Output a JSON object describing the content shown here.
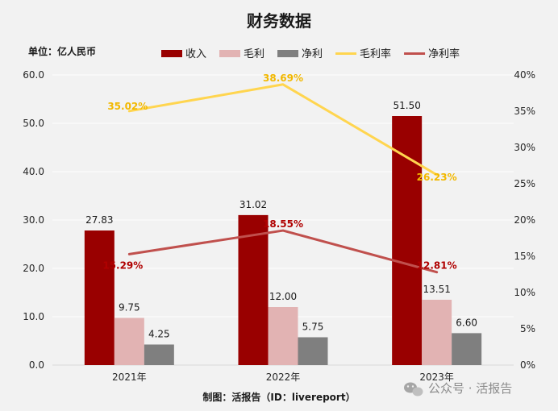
{
  "chart_data": {
    "type": "bar",
    "title": "财务数据",
    "unit_label": "单位：亿人民币",
    "categories": [
      "2021年",
      "2022年",
      "2023年"
    ],
    "series": [
      {
        "name": "收入",
        "type": "bar",
        "axis": "left",
        "color": "#990000",
        "values": [
          27.83,
          31.02,
          51.5
        ],
        "labels": [
          "27.83",
          "31.02",
          "51.50"
        ]
      },
      {
        "name": "毛利",
        "type": "bar",
        "axis": "left",
        "color": "#e2b3b3",
        "values": [
          9.75,
          12.0,
          13.51
        ],
        "labels": [
          "9.75",
          "12.00",
          "13.51"
        ]
      },
      {
        "name": "净利",
        "type": "bar",
        "axis": "left",
        "color": "#7f7f7f",
        "values": [
          4.25,
          5.75,
          6.6
        ],
        "labels": [
          "4.25",
          "5.75",
          "6.60"
        ]
      },
      {
        "name": "毛利率",
        "type": "line",
        "axis": "right",
        "color": "#ffd54f",
        "label_color": "#f2b800",
        "values": [
          35.02,
          38.69,
          26.23
        ],
        "labels": [
          "35.02%",
          "38.69%",
          "26.23%"
        ]
      },
      {
        "name": "净利率",
        "type": "line",
        "axis": "right",
        "color": "#c0504d",
        "label_color": "#b00000",
        "values": [
          15.29,
          18.55,
          12.81
        ],
        "labels": [
          "15.29%",
          "18.55%",
          "12.81%"
        ]
      }
    ],
    "y_left": {
      "min": 0,
      "max": 60,
      "step": 10,
      "ticks": [
        "0.0",
        "10.0",
        "20.0",
        "30.0",
        "40.0",
        "50.0",
        "60.0"
      ]
    },
    "y_right": {
      "min": 0,
      "max": 40,
      "step": 5,
      "ticks": [
        "0%",
        "5%",
        "10%",
        "15%",
        "20%",
        "25%",
        "30%",
        "35%",
        "40%"
      ]
    },
    "legend_position": "top-center",
    "grid": true
  },
  "footer": "制图：活报告（ID：livereport）",
  "watermark": {
    "icon": "wechat-icon",
    "text": "公众号 · 活报告"
  }
}
